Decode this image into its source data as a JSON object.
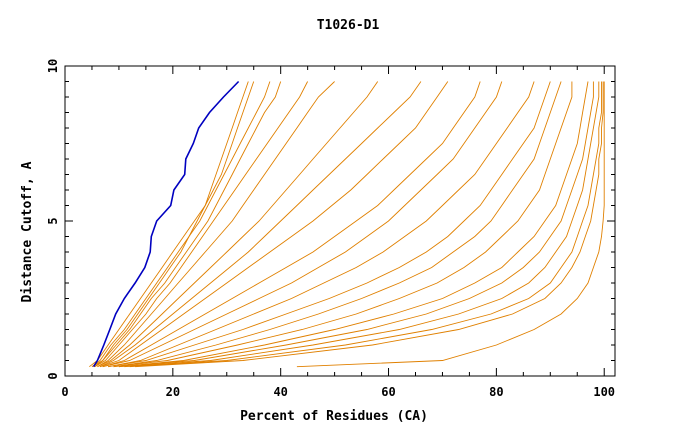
{
  "chart_data": {
    "type": "line",
    "title": "T1026-D1",
    "xlabel": "Percent of Residues (CA)",
    "ylabel": "Distance Cutoff, A",
    "xlim": [
      0,
      102
    ],
    "ylim": [
      0,
      10
    ],
    "x_ticks": [
      0,
      20,
      40,
      60,
      80,
      100
    ],
    "y_ticks": [
      0,
      5,
      10
    ],
    "x_tick_labels": [
      "0",
      "20",
      "40",
      "60",
      "80",
      "100"
    ],
    "y_tick_labels": [
      "0",
      "5",
      "10"
    ],
    "grid": false,
    "legend": "none",
    "colors": {
      "models": "#e08000",
      "highlight": "#0000c0",
      "axes": "#000000"
    },
    "y_levels": [
      0.3,
      0.5,
      1,
      1.5,
      2,
      2.5,
      3,
      3.5,
      4,
      4.5,
      5,
      5.5,
      6,
      6.5,
      7,
      7.5,
      8,
      8.5,
      9,
      9.5
    ],
    "series": [
      {
        "color": "orange",
        "x": [
          4.5,
          6,
          8,
          10,
          12,
          14,
          16,
          18,
          20,
          22,
          24,
          26,
          27,
          28,
          29,
          30,
          31,
          32,
          33,
          34
        ]
      },
      {
        "color": "orange",
        "x": [
          5,
          6.5,
          8.5,
          11,
          13,
          15,
          17,
          19,
          21,
          23,
          24.5,
          26,
          27.5,
          29,
          30,
          31,
          32,
          33,
          34,
          35
        ]
      },
      {
        "color": "orange",
        "x": [
          5,
          7,
          9,
          11.5,
          13.5,
          15.5,
          17.5,
          19.5,
          21.5,
          23,
          25,
          26.5,
          28,
          29.5,
          31,
          32.5,
          34,
          35.5,
          37,
          38
        ]
      },
      {
        "color": "orange",
        "x": [
          5.5,
          7,
          9.5,
          12,
          14,
          16,
          18.5,
          20.5,
          22.5,
          24.5,
          26.5,
          28,
          29.5,
          31,
          32.5,
          34,
          35.5,
          37,
          39,
          40
        ]
      },
      {
        "color": "orange",
        "x": [
          5.5,
          7.5,
          10,
          12.5,
          15,
          17,
          19.5,
          21.5,
          23.5,
          25.5,
          27.5,
          29.5,
          31.5,
          33.5,
          35.5,
          37.5,
          39.5,
          41.5,
          43.5,
          45
        ]
      },
      {
        "color": "orange",
        "x": [
          6,
          8,
          11,
          13.5,
          16,
          18.5,
          21,
          23.5,
          26,
          28.5,
          31,
          33,
          35,
          37,
          39,
          41,
          43,
          45,
          47,
          50
        ]
      },
      {
        "color": "orange",
        "x": [
          6,
          8.5,
          12,
          15,
          18,
          21,
          24,
          27,
          30,
          33,
          36,
          38.5,
          41,
          43.5,
          46,
          48.5,
          51,
          53.5,
          56,
          58
        ]
      },
      {
        "color": "orange",
        "x": [
          6.5,
          9,
          13,
          16.5,
          20,
          23.5,
          27,
          30.5,
          34,
          37,
          40,
          43,
          46,
          49,
          52,
          55,
          58,
          61,
          64,
          66
        ]
      },
      {
        "color": "orange",
        "x": [
          6.5,
          10,
          14,
          18,
          22,
          26,
          30,
          34,
          38,
          42,
          46,
          49.5,
          53,
          56,
          59,
          62,
          65,
          67,
          69,
          71
        ]
      },
      {
        "color": "orange",
        "x": [
          7,
          11,
          16,
          21,
          26,
          31,
          36,
          41,
          46,
          50,
          54,
          58,
          61,
          64,
          67,
          70,
          72,
          74,
          76,
          77
        ]
      },
      {
        "color": "orange",
        "x": [
          7,
          12,
          18,
          24,
          30,
          36,
          42,
          47,
          52,
          56,
          60,
          63,
          66,
          69,
          72,
          74,
          76,
          78,
          80,
          81
        ]
      },
      {
        "color": "orange",
        "x": [
          8,
          14,
          21,
          28,
          35,
          42,
          48,
          54,
          59,
          63,
          67,
          70,
          73,
          76,
          78,
          80,
          82,
          84,
          86,
          87
        ]
      },
      {
        "color": "orange",
        "x": [
          8,
          15,
          24,
          33,
          41,
          49,
          56,
          62,
          67,
          71,
          74,
          77,
          79,
          81,
          83,
          85,
          87,
          88,
          89,
          90
        ]
      },
      {
        "color": "orange",
        "x": [
          9,
          17,
          28,
          38,
          47,
          55,
          62,
          68,
          72,
          76,
          79,
          81,
          83,
          85,
          87,
          88,
          89,
          90,
          91,
          92
        ]
      },
      {
        "color": "orange",
        "x": [
          9,
          19,
          32,
          44,
          54,
          62,
          69,
          74,
          78,
          81,
          84,
          86,
          88,
          89,
          90,
          91,
          92,
          93,
          94,
          94
        ]
      },
      {
        "color": "orange",
        "x": [
          10,
          22,
          37,
          50,
          61,
          70,
          76,
          81,
          84,
          87,
          89,
          91,
          92,
          93,
          94,
          95,
          95.5,
          96,
          96.5,
          97
        ]
      },
      {
        "color": "orange",
        "x": [
          10,
          24,
          41,
          56,
          67,
          75,
          81,
          85,
          88,
          90,
          92,
          93,
          94,
          95,
          96,
          96.5,
          97,
          97.5,
          98,
          98
        ]
      },
      {
        "color": "orange",
        "x": [
          11,
          27,
          46,
          62,
          73,
          81,
          86,
          89,
          91,
          93,
          94,
          95,
          96,
          96.5,
          97,
          97.5,
          98,
          98.5,
          99,
          99
        ]
      },
      {
        "color": "orange",
        "x": [
          12,
          30,
          52,
          68,
          79,
          86,
          90,
          92,
          94,
          95,
          96,
          97,
          97.5,
          98,
          98.5,
          99,
          99,
          99.5,
          99.5,
          99.5
        ]
      },
      {
        "color": "orange",
        "x": [
          13,
          33,
          57,
          73,
          83,
          89,
          92,
          94,
          95.5,
          96.5,
          97.5,
          98,
          98.5,
          99,
          99,
          99.5,
          99.5,
          99.8,
          99.8,
          99.8
        ]
      },
      {
        "color": "orange",
        "x": [
          43,
          70,
          80,
          87,
          92,
          95,
          97,
          98,
          99,
          99.5,
          99.8,
          100,
          100,
          100,
          100,
          100,
          100,
          100,
          100,
          100
        ]
      },
      {
        "color": "highlight",
        "x": [
          5.3,
          6,
          7.2,
          8.3,
          9.4,
          11,
          13,
          14.8,
          15.8,
          16,
          17,
          19.6,
          20.2,
          22.2,
          22.4,
          23.8,
          24.8,
          26.8,
          29.4,
          32.2
        ]
      }
    ]
  }
}
